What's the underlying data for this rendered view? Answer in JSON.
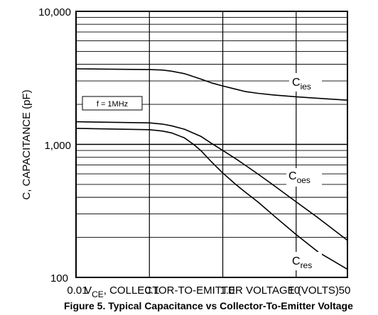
{
  "chart_data": {
    "type": "line",
    "x_scale": "log",
    "y_scale": "log",
    "xlim": [
      0.01,
      50
    ],
    "ylim": [
      100,
      10000
    ],
    "x_ticks": [
      "0.01",
      "0.1",
      "1.0",
      "10",
      "50"
    ],
    "y_ticks": [
      "10,000",
      "1,000",
      "100"
    ],
    "ylabel": "C, CAPACITANCE (pF)",
    "xlabel_prefix": "V",
    "xlabel_sub": "CE",
    "xlabel_rest": ", COLLECTOR-TO-EMITTER VOLTAGE (VOLTS)",
    "caption": "Figure 5. Typical Capacitance vs Collector-To-Emitter Voltage",
    "annotation": "f = 1MHz",
    "grid": true,
    "series": [
      {
        "name_main": "C",
        "name_sub": "ies",
        "x": [
          0.01,
          0.1,
          0.15,
          0.2,
          0.3,
          0.5,
          0.7,
          1.0,
          1.5,
          2,
          3,
          5,
          10,
          20,
          50
        ],
        "y": [
          3700,
          3650,
          3620,
          3550,
          3400,
          3100,
          2900,
          2750,
          2600,
          2500,
          2420,
          2350,
          2280,
          2220,
          2150
        ]
      },
      {
        "name_main": "C",
        "name_sub": "oes",
        "x": [
          0.01,
          0.1,
          0.15,
          0.2,
          0.3,
          0.5,
          0.7,
          1.0,
          1.5,
          2,
          3,
          5,
          10,
          20,
          50
        ],
        "y": [
          1480,
          1450,
          1420,
          1380,
          1300,
          1150,
          1020,
          900,
          780,
          700,
          600,
          490,
          370,
          280,
          190
        ]
      },
      {
        "name_main": "C",
        "name_sub": "res",
        "x": [
          0.01,
          0.1,
          0.15,
          0.2,
          0.3,
          0.4,
          0.5,
          0.7,
          1.0,
          1.5,
          2,
          3,
          5,
          10,
          20,
          50
        ],
        "y": [
          1320,
          1290,
          1260,
          1220,
          1120,
          1000,
          900,
          740,
          610,
          500,
          440,
          370,
          290,
          210,
          155,
          115
        ]
      }
    ]
  }
}
